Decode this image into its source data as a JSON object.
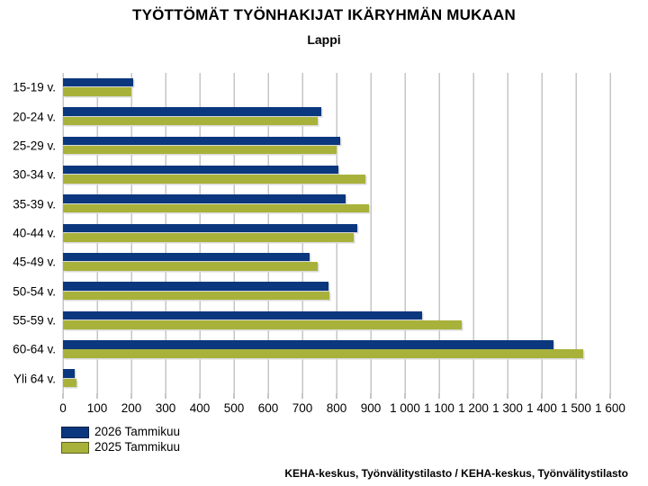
{
  "title": "TYÖTTÖMÄT TYÖNHAKIJAT IKÄRYHMÄN MUKAAN",
  "subtitle": "Lappi",
  "footer": "KEHA-keskus, Työnvälitystilasto / KEHA-keskus, Työnvälitystilasto",
  "colors": {
    "series_2026": "#0a377d",
    "series_2025": "#a8b23a",
    "gridline": "#c6c6c6"
  },
  "legend": {
    "items": [
      {
        "label": "2026 Tammikuu",
        "color": "#0a377d"
      },
      {
        "label": "2025 Tammikuu",
        "color": "#a8b23a"
      }
    ]
  },
  "chart_data": {
    "type": "bar",
    "orientation": "horizontal",
    "title": "TYÖTTÖMÄT TYÖNHAKIJAT IKÄRYHMÄN MUKAAN",
    "subtitle": "Lappi",
    "categories": [
      "15-19 v.",
      "20-24 v.",
      "25-29 v.",
      "30-34 v.",
      "35-39 v.",
      "40-44 v.",
      "45-49 v.",
      "50-54 v.",
      "55-59 v.",
      "60-64 v.",
      "Yli 64 v."
    ],
    "series": [
      {
        "name": "2026 Tammikuu",
        "color": "#0a377d",
        "values": [
          205,
          755,
          810,
          805,
          825,
          860,
          720,
          775,
          1050,
          1435,
          35
        ]
      },
      {
        "name": "2025 Tammikuu",
        "color": "#a8b23a",
        "values": [
          200,
          745,
          800,
          885,
          895,
          850,
          745,
          780,
          1165,
          1520,
          40
        ]
      }
    ],
    "xlim": [
      0,
      1600
    ],
    "xticks": [
      0,
      100,
      200,
      300,
      400,
      500,
      600,
      700,
      800,
      900,
      1000,
      1100,
      1200,
      1300,
      1400,
      1500,
      1600
    ],
    "xtick_labels": [
      "0",
      "100",
      "200",
      "300",
      "400",
      "500",
      "600",
      "700",
      "800",
      "900",
      "1 000",
      "1 100",
      "1 200",
      "1 300",
      "1 400",
      "1 500",
      "1 600"
    ],
    "grid": true,
    "legend_position": "bottom-left"
  }
}
